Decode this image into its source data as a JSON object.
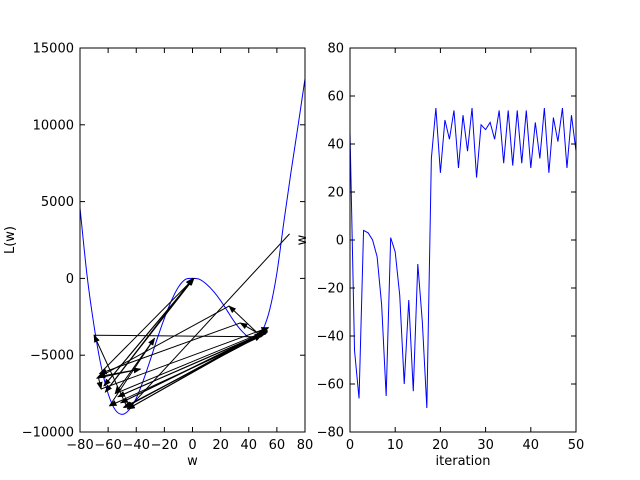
{
  "chart_data": [
    {
      "type": "line",
      "xlabel": "w",
      "ylabel": "L(w)",
      "xlim": [
        -80,
        80
      ],
      "ylim": [
        -10000,
        15000
      ],
      "xticks": [
        -80,
        -60,
        -40,
        -20,
        0,
        20,
        40,
        60,
        80
      ],
      "yticks": [
        -10000,
        -5000,
        0,
        5000,
        10000,
        15000
      ],
      "xtick_labels": [
        "−80",
        "−60",
        "−40",
        "−20",
        "0",
        "20",
        "40",
        "60",
        "80"
      ],
      "ytick_labels": [
        "−10000",
        "−5000",
        "0",
        "5000",
        "10000",
        "15000"
      ],
      "curve_color": "#0000ff",
      "arrow_color": "#000000",
      "curve": {
        "x": [
          -80,
          -75,
          -70,
          -65,
          -60,
          -55,
          -50,
          -45,
          -40,
          -35,
          -30,
          -25,
          -20,
          -15,
          -10,
          -5,
          0,
          5,
          10,
          15,
          20,
          25,
          30,
          35,
          40,
          45,
          50,
          55,
          60,
          65,
          70,
          75,
          80
        ],
        "y": [
          4600,
          200,
          -3100,
          -5700,
          -7500,
          -8550,
          -8850,
          -8550,
          -7800,
          -6650,
          -5300,
          -3900,
          -2600,
          -1450,
          -560,
          -60,
          0,
          -60,
          -380,
          -850,
          -1450,
          -2150,
          -2850,
          -3420,
          -3830,
          -3900,
          -3350,
          -2000,
          350,
          3700,
          6900,
          9900,
          13000
        ]
      },
      "path": {
        "w": [
          69,
          -46,
          -70,
          49,
          26,
          -68,
          -37,
          -67,
          -65,
          54,
          48,
          -59,
          -27,
          -55,
          53,
          47,
          -53,
          50,
          -51,
          51,
          -48,
          53,
          -46,
          52,
          49,
          -49,
          49,
          34,
          -66,
          1,
          -63,
          1,
          -62,
          0
        ],
        "L": [
          2900,
          -8500,
          -3700,
          -3800,
          -1800,
          -6500,
          -5900,
          -6400,
          -7200,
          -3200,
          -3800,
          -8300,
          -3900,
          -7500,
          -3400,
          -3700,
          -7700,
          -3600,
          -8100,
          -3500,
          -8400,
          -3400,
          -8500,
          -3400,
          -3700,
          -8400,
          -3700,
          -2900,
          -6200,
          0,
          -7000,
          0,
          -7400,
          0
        ]
      }
    },
    {
      "type": "line",
      "xlabel": "iteration",
      "ylabel": "w",
      "xlim": [
        0,
        50
      ],
      "ylim": [
        -80,
        80
      ],
      "xticks": [
        0,
        10,
        20,
        30,
        40,
        50
      ],
      "yticks": [
        -80,
        -60,
        -40,
        -20,
        0,
        20,
        40,
        60,
        80
      ],
      "xtick_labels": [
        "0",
        "10",
        "20",
        "30",
        "40",
        "50"
      ],
      "ytick_labels": [
        "−80",
        "−60",
        "−40",
        "−20",
        "0",
        "20",
        "40",
        "60",
        "80"
      ],
      "line_color": "#0000ff",
      "x": [
        0,
        1,
        2,
        3,
        4,
        5,
        6,
        7,
        8,
        9,
        10,
        11,
        12,
        13,
        14,
        15,
        16,
        17,
        18,
        19,
        20,
        21,
        22,
        23,
        24,
        25,
        26,
        27,
        28,
        29,
        30,
        31,
        32,
        33,
        34,
        35,
        36,
        37,
        38,
        39,
        40,
        41,
        42,
        43,
        44,
        45,
        46,
        47,
        48,
        49,
        50
      ],
      "y": [
        45,
        -46,
        -66,
        4,
        3,
        0,
        -7,
        -27,
        -65,
        1,
        -5,
        -23,
        -60,
        -25,
        -63,
        -10,
        -34,
        -70,
        34,
        55,
        28,
        50,
        42,
        54,
        30,
        52,
        37,
        55,
        26,
        48,
        46,
        49,
        42,
        54,
        32,
        54,
        31,
        54,
        32,
        54,
        30,
        49,
        34,
        55,
        28,
        51,
        41,
        55,
        30,
        52,
        37
      ]
    }
  ]
}
